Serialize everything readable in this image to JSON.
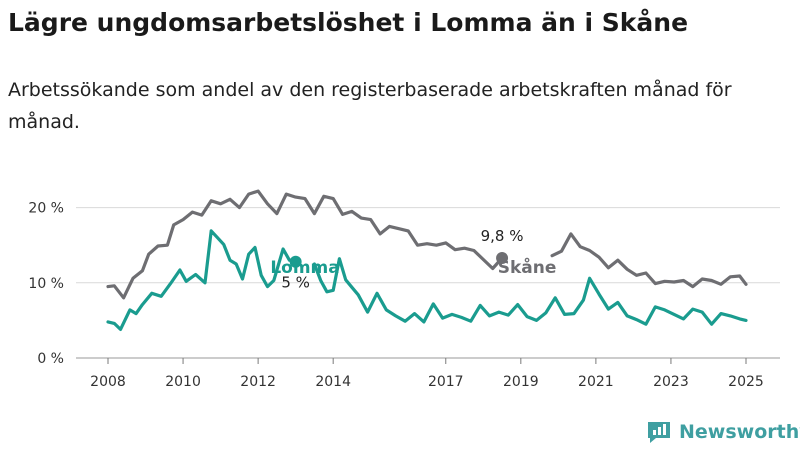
{
  "title": "Lägre ungdomsarbetslöshet i Lomma än i Skåne",
  "subtitle": "Arbetssökande som andel av den registerbaserade arbetskraften månad för månad.",
  "brand": "Newsworthy",
  "colors": {
    "lomma": "#1a9c8f",
    "skane": "#6e6e72",
    "grid": "#d9d9d9",
    "axis": "#333333",
    "brand": "#3f9fa1"
  },
  "chart_data": {
    "type": "line",
    "title": "Lägre ungdomsarbetslöshet i Lomma än i Skåne",
    "subtitle": "Arbetssökande som andel av den registerbaserade arbetskraften månad för månad.",
    "xlabel": "",
    "ylabel": "",
    "x_ticks": [
      "2008",
      "2010",
      "2012",
      "2014",
      "2017",
      "2019",
      "2021",
      "2023",
      "2025"
    ],
    "y_ticks": [
      "0 %",
      "10 %",
      "20 %"
    ],
    "xlim": [
      "2008-01",
      "2025-01"
    ],
    "ylim": [
      0,
      22
    ],
    "grid": true,
    "legend": "inline labels",
    "series": [
      {
        "name": "Skåne",
        "key": "skane",
        "color": "#6e6e72",
        "end_label": "9,8 %",
        "points": [
          [
            "2008-01",
            9.5
          ],
          [
            "2008-03",
            9.6
          ],
          [
            "2008-06",
            8.0
          ],
          [
            "2008-09",
            10.6
          ],
          [
            "2008-12",
            11.6
          ],
          [
            "2009-02",
            13.8
          ],
          [
            "2009-05",
            14.9
          ],
          [
            "2009-08",
            15.0
          ],
          [
            "2009-10",
            17.7
          ],
          [
            "2010-01",
            18.4
          ],
          [
            "2010-04",
            19.4
          ],
          [
            "2010-07",
            19.0
          ],
          [
            "2010-10",
            20.9
          ],
          [
            "2011-01",
            20.5
          ],
          [
            "2011-04",
            21.1
          ],
          [
            "2011-07",
            20.0
          ],
          [
            "2011-10",
            21.8
          ],
          [
            "2012-01",
            22.2
          ],
          [
            "2012-04",
            20.5
          ],
          [
            "2012-07",
            19.2
          ],
          [
            "2012-10",
            21.8
          ],
          [
            "2013-01",
            21.4
          ],
          [
            "2013-04",
            21.2
          ],
          [
            "2013-07",
            19.2
          ],
          [
            "2013-10",
            21.5
          ],
          [
            "2014-01",
            21.2
          ],
          [
            "2014-04",
            19.1
          ],
          [
            "2014-07",
            19.5
          ],
          [
            "2014-10",
            18.6
          ],
          [
            "2015-01",
            18.4
          ],
          [
            "2015-04",
            16.5
          ],
          [
            "2015-07",
            17.5
          ],
          [
            "2015-10",
            17.2
          ],
          [
            "2016-01",
            16.9
          ],
          [
            "2016-04",
            15.0
          ],
          [
            "2016-07",
            15.2
          ],
          [
            "2016-10",
            15.0
          ],
          [
            "2017-01",
            15.3
          ],
          [
            "2017-04",
            14.4
          ],
          [
            "2017-07",
            14.6
          ],
          [
            "2017-10",
            14.3
          ],
          [
            "2018-01",
            13.1
          ],
          [
            "2018-04",
            11.9
          ],
          [
            "2018-07",
            13.3
          ]
        ]
      },
      {
        "name": "Skåne",
        "key": "skane",
        "color": "#6e6e72",
        "points": [
          [
            "2019-11",
            13.6
          ],
          [
            "2020-02",
            14.2
          ],
          [
            "2020-05",
            16.5
          ],
          [
            "2020-08",
            14.8
          ],
          [
            "2020-11",
            14.3
          ],
          [
            "2021-02",
            13.4
          ],
          [
            "2021-05",
            12.0
          ],
          [
            "2021-08",
            13.0
          ],
          [
            "2021-11",
            11.8
          ],
          [
            "2022-02",
            11.0
          ],
          [
            "2022-05",
            11.3
          ],
          [
            "2022-08",
            9.9
          ],
          [
            "2022-11",
            10.2
          ],
          [
            "2023-02",
            10.1
          ],
          [
            "2023-05",
            10.3
          ],
          [
            "2023-08",
            9.5
          ],
          [
            "2023-11",
            10.5
          ],
          [
            "2024-02",
            10.3
          ],
          [
            "2024-05",
            9.8
          ],
          [
            "2024-08",
            10.8
          ],
          [
            "2024-11",
            10.9
          ],
          [
            "2025-01",
            9.8
          ]
        ]
      },
      {
        "name": "Lomma",
        "key": "lomma",
        "color": "#1a9c8f",
        "end_label": "5 %",
        "points": [
          [
            "2008-01",
            4.8
          ],
          [
            "2008-03",
            4.6
          ],
          [
            "2008-05",
            3.8
          ],
          [
            "2008-08",
            6.4
          ],
          [
            "2008-10",
            5.9
          ],
          [
            "2008-12",
            7.1
          ],
          [
            "2009-03",
            8.6
          ],
          [
            "2009-06",
            8.2
          ],
          [
            "2009-09",
            9.9
          ],
          [
            "2009-12",
            11.7
          ],
          [
            "2010-02",
            10.2
          ],
          [
            "2010-05",
            11.1
          ],
          [
            "2010-08",
            10.0
          ],
          [
            "2010-10",
            16.9
          ],
          [
            "2010-12",
            16.0
          ],
          [
            "2011-02",
            15.1
          ],
          [
            "2011-04",
            13.0
          ],
          [
            "2011-06",
            12.5
          ],
          [
            "2011-08",
            10.5
          ],
          [
            "2011-10",
            13.8
          ],
          [
            "2011-12",
            14.7
          ],
          [
            "2012-02",
            11.0
          ],
          [
            "2012-04",
            9.5
          ],
          [
            "2012-06",
            10.3
          ],
          [
            "2012-09",
            14.5
          ],
          [
            "2012-11",
            13.0
          ],
          [
            "2013-01",
            12.8
          ]
        ]
      },
      {
        "name": "Lomma",
        "key": "lomma",
        "color": "#1a9c8f",
        "points": [
          [
            "2013-07",
            12.5
          ],
          [
            "2013-09",
            10.3
          ],
          [
            "2013-11",
            8.8
          ],
          [
            "2014-01",
            9.0
          ],
          [
            "2014-03",
            13.2
          ],
          [
            "2014-05",
            10.4
          ],
          [
            "2014-07",
            9.4
          ],
          [
            "2014-09",
            8.4
          ],
          [
            "2014-12",
            6.1
          ],
          [
            "2015-03",
            8.6
          ],
          [
            "2015-06",
            6.4
          ],
          [
            "2015-09",
            5.6
          ],
          [
            "2015-12",
            4.9
          ],
          [
            "2016-03",
            5.9
          ],
          [
            "2016-06",
            4.8
          ],
          [
            "2016-09",
            7.2
          ],
          [
            "2016-12",
            5.3
          ],
          [
            "2017-03",
            5.8
          ],
          [
            "2017-06",
            5.4
          ],
          [
            "2017-09",
            4.9
          ],
          [
            "2017-12",
            7.0
          ],
          [
            "2018-03",
            5.6
          ],
          [
            "2018-06",
            6.1
          ],
          [
            "2018-09",
            5.7
          ],
          [
            "2018-12",
            7.1
          ],
          [
            "2019-03",
            5.5
          ],
          [
            "2019-06",
            5.0
          ],
          [
            "2019-09",
            6.0
          ],
          [
            "2019-12",
            8.0
          ],
          [
            "2020-03",
            5.8
          ],
          [
            "2020-06",
            5.9
          ],
          [
            "2020-09",
            7.7
          ],
          [
            "2020-11",
            10.6
          ],
          [
            "2021-02",
            8.5
          ],
          [
            "2021-05",
            6.5
          ],
          [
            "2021-08",
            7.4
          ],
          [
            "2021-11",
            5.6
          ],
          [
            "2022-02",
            5.1
          ],
          [
            "2022-05",
            4.5
          ],
          [
            "2022-08",
            6.8
          ],
          [
            "2022-11",
            6.4
          ],
          [
            "2023-02",
            5.8
          ],
          [
            "2023-05",
            5.2
          ],
          [
            "2023-08",
            6.5
          ],
          [
            "2023-11",
            6.1
          ],
          [
            "2024-02",
            4.5
          ],
          [
            "2024-05",
            5.9
          ],
          [
            "2024-08",
            5.6
          ],
          [
            "2024-11",
            5.2
          ],
          [
            "2025-01",
            5.0
          ]
        ]
      }
    ]
  }
}
